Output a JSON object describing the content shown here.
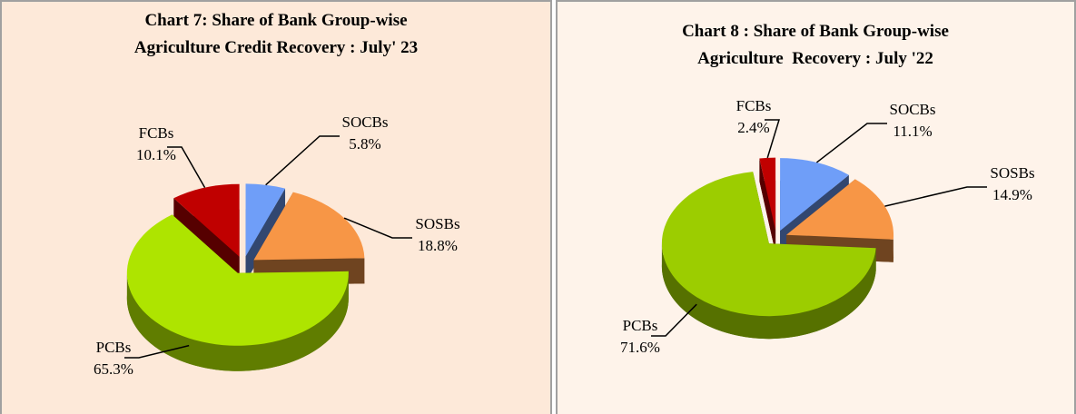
{
  "chart_data": [
    {
      "type": "pie",
      "title": [
        "Chart 7: Share of Bank Group-wise",
        "Agriculture Credit Recovery : July' 23"
      ],
      "categories": [
        "SOCBs",
        "SOSBs",
        "PCBs",
        "FCBs"
      ],
      "values": [
        5.8,
        18.8,
        65.3,
        10.1
      ],
      "value_labels": [
        "5.8%",
        "18.8%",
        "65.3%",
        "10.1%"
      ],
      "colors": [
        "#6f9ef8",
        "#f79646",
        "#aee400",
        "#c00000"
      ]
    },
    {
      "type": "pie",
      "title": [
        "Chart 8 : Share of Bank Group-wise",
        "Agriculture  Recovery : July '22"
      ],
      "categories": [
        "SOCBs",
        "SOSBs",
        "PCBs",
        "FCBs"
      ],
      "values": [
        11.1,
        14.9,
        71.6,
        2.4
      ],
      "value_labels": [
        "11.1%",
        "14.9%",
        "71.6%",
        "2.4%"
      ],
      "colors": [
        "#6f9ef8",
        "#f79646",
        "#9ccd00",
        "#c00000"
      ]
    }
  ]
}
